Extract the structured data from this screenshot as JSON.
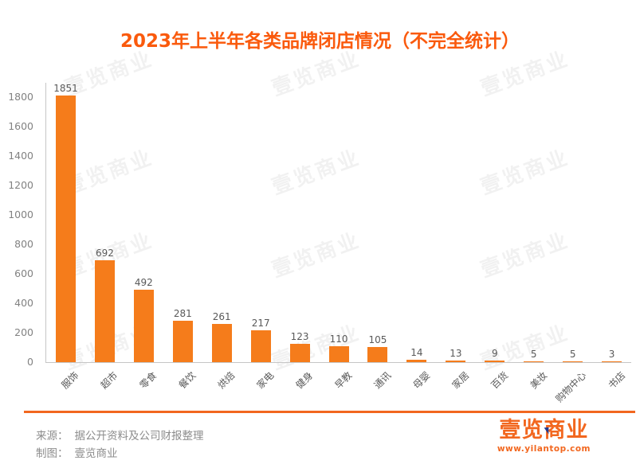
{
  "title": "2023年上半年各类品牌闭店情况（不完全统计）",
  "watermark": "壹览商业",
  "colors": {
    "bar": "#F57C1B",
    "title": "#FA5A0D",
    "accent": "#F2671F",
    "axis": "#C6C6C6",
    "tick_label": "#828282",
    "value_label": "#595959"
  },
  "chart_data": {
    "type": "bar",
    "title": "2023年上半年各类品牌闭店情况（不完全统计）",
    "categories": [
      "服饰",
      "超市",
      "零食",
      "餐饮",
      "烘焙",
      "家电",
      "健身",
      "早教",
      "通讯",
      "母婴",
      "家居",
      "百货",
      "美妆",
      "购物中心",
      "书店"
    ],
    "values": [
      1851,
      692,
      492,
      281,
      261,
      217,
      123,
      110,
      105,
      14,
      13,
      9,
      5,
      5,
      3
    ],
    "xlabel": "",
    "ylabel": "",
    "ylim": [
      0,
      1900
    ],
    "yticks": [
      0,
      200,
      400,
      600,
      800,
      1000,
      1200,
      1400,
      1600,
      1800
    ],
    "grid": false,
    "legend": false,
    "x_tick_rotation_deg": 45,
    "data_labels_shown": true
  },
  "footer": {
    "source_label": "来源：",
    "source_value": "据公开资料及公司财报整理",
    "credit_label": "制图：",
    "credit_value": "壹览商业",
    "logo_text": "壹览商业",
    "logo_url_text": "www.yilantop.com"
  }
}
